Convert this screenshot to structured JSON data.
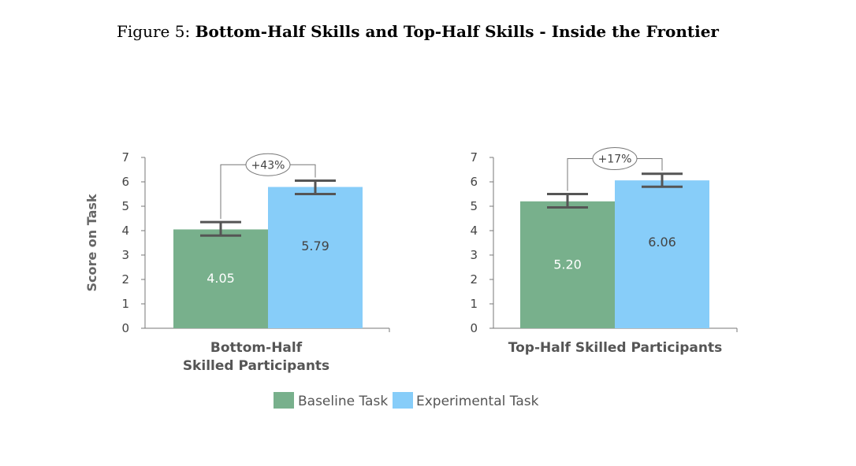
{
  "figure": {
    "prefix": "Figure 5:",
    "title": "Bottom-Half Skills and Top-Half Skills - Inside the Frontier"
  },
  "colors": {
    "baseline": "#78b08c",
    "experimental": "#87cdf9",
    "errorbar": "#555555"
  },
  "chart_data": [
    {
      "type": "bar",
      "ylabel": "Score on Task",
      "ylim": [
        0,
        7
      ],
      "yticks": [
        0,
        1,
        2,
        3,
        4,
        5,
        6,
        7
      ],
      "category_lines": [
        "Bottom-Half",
        "Skilled Participants"
      ],
      "series": [
        {
          "name": "Baseline Task",
          "value": 4.05,
          "label": "4.05",
          "error": [
            3.8,
            4.35
          ]
        },
        {
          "name": "Experimental Task",
          "value": 5.79,
          "label": "5.79",
          "error": [
            5.5,
            6.05
          ]
        }
      ],
      "annotation": "+43%"
    },
    {
      "type": "bar",
      "ylabel": "",
      "ylim": [
        0,
        7
      ],
      "yticks": [
        0,
        1,
        2,
        3,
        4,
        5,
        6,
        7
      ],
      "category_lines": [
        "Top-Half Skilled Participants"
      ],
      "series": [
        {
          "name": "Baseline Task",
          "value": 5.2,
          "label": "5.20",
          "error": [
            4.95,
            5.5
          ]
        },
        {
          "name": "Experimental Task",
          "value": 6.06,
          "label": "6.06",
          "error": [
            5.8,
            6.33
          ]
        }
      ],
      "annotation": "+17%"
    }
  ],
  "legend": {
    "position": "bottom-center",
    "items": [
      {
        "label": "Baseline Task",
        "color": "#78b08c"
      },
      {
        "label": "Experimental Task",
        "color": "#87cdf9"
      }
    ]
  }
}
